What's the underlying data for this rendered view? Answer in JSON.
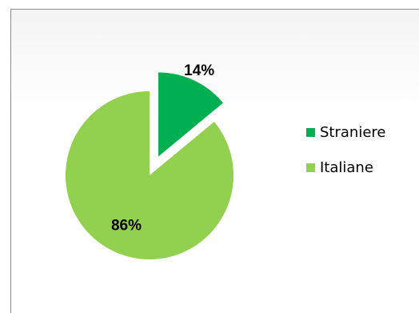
{
  "chart_data": {
    "type": "pie",
    "exploded": "first slice",
    "legend_position": "right",
    "slices": [
      {
        "name": "Straniere",
        "value": 14,
        "label": "14%",
        "color": "#00b050"
      },
      {
        "name": "Italiane",
        "value": 86,
        "label": "86%",
        "color": "#92d050"
      }
    ]
  }
}
